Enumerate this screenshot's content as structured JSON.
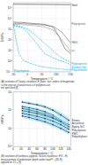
{
  "chart_data": [
    {
      "type": "line",
      "log": "y",
      "grid": true,
      "ylabel": "E/MPa",
      "xlabel": "Temperature / °C",
      "xlim": [
        -50,
        150
      ],
      "ylim": [
        0.1,
        300000
      ],
      "xticks": [
        -50,
        0,
        50,
        100,
        150
      ],
      "yticks": [
        {
          "value": 0.1,
          "label": "10⁻¹"
        },
        {
          "value": 1,
          "label": "10⁰"
        },
        {
          "value": 10,
          "label": "10¹"
        },
        {
          "value": 100,
          "label": "10²"
        },
        {
          "value": 1000,
          "label": "10³"
        },
        {
          "value": 10000,
          "label": "10⁴"
        },
        {
          "value": 100000,
          "label": "10⁵"
        }
      ],
      "series": [
        {
          "x": [
            -50,
            -20,
            0,
            30,
            60,
            90,
            110,
            130,
            150
          ],
          "values": [
            4500,
            4200,
            3800,
            3200,
            2800,
            1500,
            200,
            15,
            5
          ],
          "color": "#555555",
          "line_style": "solid"
        },
        {
          "x": [
            -50,
            -20,
            0,
            30,
            60,
            90,
            120,
            150
          ],
          "values": [
            3500,
            3300,
            3000,
            2700,
            2400,
            1800,
            500,
            50
          ],
          "color": "#777777",
          "line_style": "solid"
        },
        {
          "x": [
            -50,
            -20,
            0,
            30,
            60,
            90,
            110,
            140,
            150
          ],
          "values": [
            2800,
            2600,
            2400,
            2000,
            1600,
            800,
            200,
            20,
            8
          ],
          "color": "#999999",
          "line_style": "solid"
        },
        {
          "x": [
            -50,
            0,
            50,
            100,
            150
          ],
          "values": [
            215000,
            210000,
            205000,
            200000,
            195000
          ],
          "color": "#333333",
          "line_style": "solid"
        },
        {
          "x": [
            -50,
            -40,
            -30,
            -20,
            -10,
            0,
            20,
            50,
            100,
            150
          ],
          "values": [
            3000,
            100,
            5,
            2,
            1,
            0.8,
            0.5,
            0.3,
            0.2,
            0.15
          ],
          "color": "#00aadd",
          "line_style": "dashed"
        },
        {
          "x": [
            -50,
            -20,
            0,
            20,
            50,
            80,
            100,
            120,
            150
          ],
          "values": [
            2000,
            1600,
            1000,
            400,
            80,
            15,
            5,
            2,
            0.8
          ],
          "color": "#00aadd",
          "line_style": "dashed"
        },
        {
          "x": [
            -50,
            -20,
            0,
            30,
            60,
            90,
            110,
            130,
            150
          ],
          "values": [
            2500,
            1500,
            500,
            50,
            5,
            2,
            1.2,
            0.8,
            0.5
          ],
          "color": "#00aadd",
          "line_style": "dashed"
        }
      ],
      "annotations": [
        {
          "x": 152,
          "y": 180000,
          "text": "Steel",
          "color": "#333333"
        },
        {
          "x": 152,
          "y": 3000,
          "text": "Polystyrene",
          "color": "#555555"
        },
        {
          "x": 152,
          "y": 60,
          "text": "PA66",
          "color": "#777777"
        },
        {
          "x": 152,
          "y": 8,
          "text": "PP",
          "color": "#999999"
        },
        {
          "x": 152,
          "y": 0.4,
          "text": "Polyisoprene",
          "color": "#00aadd"
        },
        {
          "x": 152,
          "y": 0.16,
          "text": "Vitramer low\nPolyurethane",
          "color": "#00aadd"
        },
        {
          "x": -48,
          "y": 0.13,
          "text": "Polyethylene",
          "color": "#00aadd"
        }
      ],
      "caption": "(A) evolution of Young's modulus E (Note: unit: orders of magnitude,\nso the precise characteristics of polymers are\nnot specified [8]"
    },
    {
      "type": "line",
      "log": "y",
      "grid": true,
      "ylabel": "H/MPa",
      "xlabel": "Temperature / °C",
      "xlim": [
        0,
        145
      ],
      "ylim": [
        1,
        1000
      ],
      "xticks": [
        0,
        20,
        40,
        60,
        80,
        100,
        120,
        140
      ],
      "yticks": [
        {
          "value": 1,
          "label": "10⁰"
        },
        {
          "value": 10,
          "label": "10¹"
        },
        {
          "value": 100,
          "label": "10²"
        },
        {
          "value": 1000,
          "label": "10³"
        }
      ],
      "band_color": "#88ddff",
      "series": [
        {
          "x": [
            23,
            40,
            60,
            80,
            100,
            120,
            140
          ],
          "values": [
            280,
            240,
            200,
            155,
            100,
            55,
            28
          ],
          "y_lo": [
            240,
            200,
            170,
            125,
            80,
            40,
            20
          ],
          "y_hi": [
            330,
            290,
            240,
            185,
            130,
            75,
            40
          ],
          "color": "#333333",
          "marker": "square",
          "line_style": "solid"
        },
        {
          "x": [
            23,
            40,
            60,
            80,
            100,
            120
          ],
          "values": [
            160,
            135,
            110,
            82,
            52,
            28
          ],
          "y_lo": [
            130,
            108,
            88,
            65,
            40,
            20
          ],
          "y_hi": [
            195,
            165,
            135,
            100,
            65,
            38
          ],
          "color": "#333333",
          "marker": "square",
          "line_style": "solid"
        },
        {
          "x": [
            23,
            40,
            60,
            80,
            100,
            120,
            140
          ],
          "values": [
            125,
            103,
            82,
            62,
            42,
            26,
            16
          ],
          "y_lo": [
            100,
            82,
            65,
            49,
            32,
            20,
            12
          ],
          "y_hi": [
            155,
            128,
            103,
            77,
            53,
            34,
            21
          ],
          "color": "#333333",
          "marker": "square",
          "line_style": "solid"
        },
        {
          "x": [
            23,
            40,
            60,
            80,
            100,
            120,
            140
          ],
          "values": [
            95,
            80,
            66,
            51,
            37,
            23,
            12
          ],
          "y_lo": [
            76,
            64,
            52,
            40,
            28,
            18,
            9
          ],
          "y_hi": [
            118,
            100,
            83,
            64,
            47,
            30,
            16
          ],
          "color": "#333333",
          "marker": "square",
          "line_style": "solid"
        },
        {
          "x": [
            23,
            40,
            60,
            80,
            100,
            120,
            140
          ],
          "values": [
            68,
            57,
            46,
            35,
            25,
            16,
            9
          ],
          "y_lo": [
            54,
            45,
            36,
            27,
            19,
            12,
            7
          ],
          "y_hi": [
            85,
            71,
            58,
            44,
            32,
            21,
            12
          ],
          "color": "#333333",
          "marker": "square",
          "line_style": "solid"
        },
        {
          "x": [
            23,
            40,
            60,
            80,
            100,
            120,
            140
          ],
          "values": [
            48,
            40,
            31,
            23,
            16,
            10,
            6
          ],
          "y_lo": [
            38,
            31,
            24,
            18,
            12,
            8,
            4.5
          ],
          "y_hi": [
            60,
            50,
            39,
            29,
            20,
            13,
            8
          ],
          "color": "#333333",
          "marker": "square",
          "line_style": "solid"
        }
      ],
      "annotations": [
        {
          "x": 147,
          "y": 28,
          "text": "Pmma",
          "color": "#333333"
        },
        {
          "x": 147,
          "y": 22,
          "text": "Acrysense",
          "color": "#333333"
        },
        {
          "x": 147,
          "y": 15,
          "text": "Epoxy-SiO",
          "color": "#333333"
        },
        {
          "x": 147,
          "y": 11,
          "text": "Polystyrene",
          "color": "#333333"
        },
        {
          "x": 147,
          "y": 8,
          "text": "PMO",
          "color": "#333333"
        },
        {
          "x": 147,
          "y": 5.5,
          "text": "Polyethylene",
          "color": "#333333"
        }
      ],
      "caption": "(B) evolution of hardness (approx. Vickers hardness: HV ≈ H)\nmeasurement of indentation depth under load F ≈ (80 N)\napplied for 15 s [9]"
    }
  ]
}
